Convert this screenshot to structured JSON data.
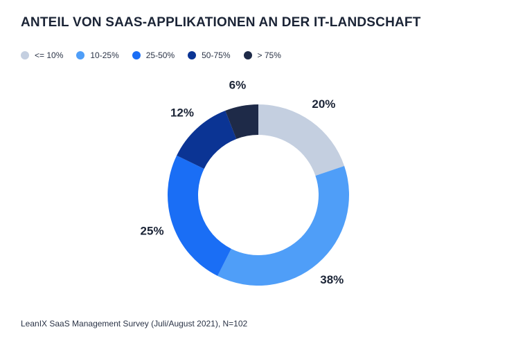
{
  "chart_data": {
    "type": "pie",
    "title": "ANTEIL VON SAAS-APPLIKATIONEN AN DER IT-LANDSCHAFT",
    "categories": [
      "<= 10%",
      "10-25%",
      "25-50%",
      "50-75%",
      "> 75%"
    ],
    "values": [
      20,
      38,
      25,
      12,
      6
    ],
    "value_labels": [
      "20%",
      "38%",
      "25%",
      "12%",
      "6%"
    ],
    "colors": [
      "#c4cfe0",
      "#4f9ef8",
      "#1a6ef5",
      "#0b3494",
      "#1e2a48"
    ],
    "donut": true,
    "legend_position": "top-left",
    "source": "LeanIX SaaS Management Survey (Juli/August 2021), N=102"
  }
}
